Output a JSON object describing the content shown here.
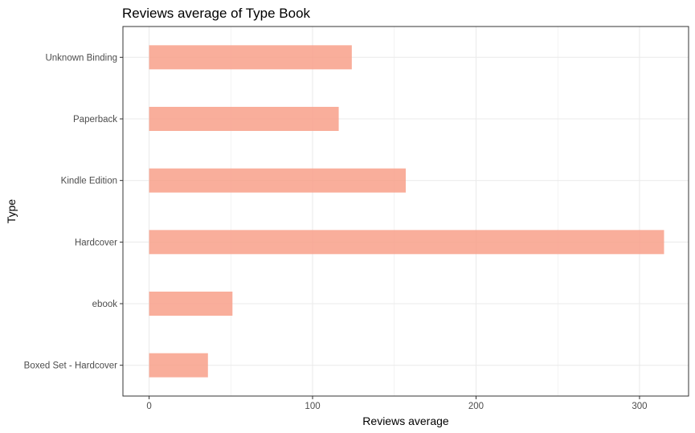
{
  "chart_data": {
    "type": "bar",
    "orientation": "horizontal",
    "title": "Reviews average of Type Book",
    "xlabel": "Reviews average",
    "ylabel": "Type",
    "categories": [
      "Boxed Set - Hardcover",
      "ebook",
      "Hardcover",
      "Kindle Edition",
      "Paperback",
      "Unknown Binding"
    ],
    "values": [
      36,
      51,
      315,
      157,
      116,
      124
    ],
    "xlim": [
      -16,
      330
    ],
    "x_ticks": [
      0,
      100,
      200,
      300
    ],
    "grid": true,
    "bar_color": "#f8a08a"
  }
}
